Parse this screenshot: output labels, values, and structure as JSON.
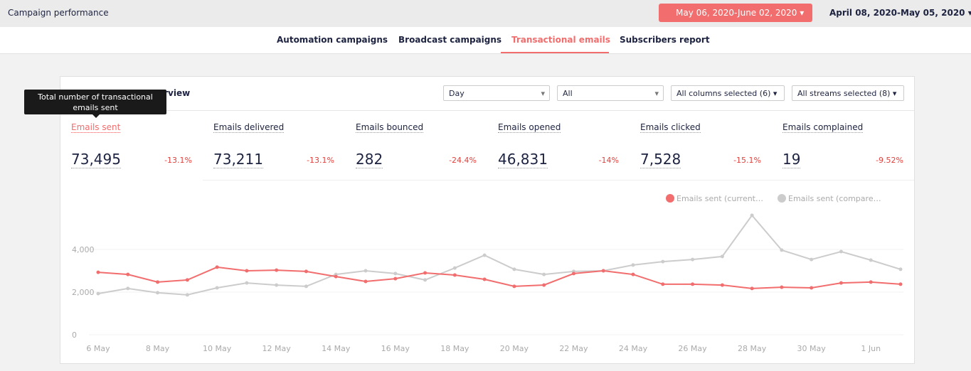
{
  "header": {
    "title": "Campaign performance",
    "current_range": "May 06, 2020-June 02, 2020",
    "compare_range": "April 08, 2020-May 05, 2020"
  },
  "tabs": [
    "Automation campaigns",
    "Broadcast campaigns",
    "Transactional emails",
    "Subscribers report"
  ],
  "active_tab": 2,
  "panel": {
    "title": "erview",
    "tooltip": [
      "Total number of transactional",
      "emails sent"
    ],
    "filters": [
      "Day",
      "All",
      "All columns selected (6)",
      "All streams selected (8)"
    ],
    "metrics": [
      {
        "label": "Emails sent",
        "value": "73,495",
        "change": "-13.1%"
      },
      {
        "label": "Emails delivered",
        "value": "73,211",
        "change": "-13.1%"
      },
      {
        "label": "Emails bounced",
        "value": "282",
        "change": "-24.4%"
      },
      {
        "label": "Emails opened",
        "value": "46,831",
        "change": "-14%"
      },
      {
        "label": "Emails clicked",
        "value": "7,528",
        "change": "-15.1%"
      },
      {
        "label": "Emails complained",
        "value": "19",
        "change": "-9.52%"
      }
    ]
  },
  "chart_data": {
    "type": "line",
    "categories": [
      "6 May",
      null,
      "8 May",
      null,
      "10 May",
      null,
      "12 May",
      null,
      "14 May",
      null,
      "16 May",
      null,
      "18 May",
      null,
      "20 May",
      null,
      "22 May",
      null,
      "24 May",
      null,
      "26 May",
      null,
      "28 May",
      null,
      "30 May",
      null,
      "1 Jun",
      null
    ],
    "series": [
      {
        "name": "Emails sent (current…",
        "color": "#f26d6d",
        "values": [
          2930,
          2830,
          2470,
          2570,
          3170,
          3000,
          3030,
          2970,
          2730,
          2500,
          2630,
          2900,
          2800,
          2600,
          2270,
          2330,
          2870,
          3000,
          2830,
          2370,
          2370,
          2330,
          2170,
          2230,
          2200,
          2430,
          2470,
          2370
        ]
      },
      {
        "name": "Emails sent (compare…",
        "color": "#cccccc",
        "values": [
          1930,
          2170,
          1970,
          1870,
          2200,
          2430,
          2330,
          2270,
          2830,
          3000,
          2870,
          2570,
          3130,
          3730,
          3070,
          2830,
          2970,
          3000,
          3270,
          3430,
          3530,
          3670,
          5600,
          3970,
          3530,
          3900,
          3500,
          3070
        ]
      }
    ],
    "ylim": [
      0,
      6000
    ],
    "yticks": [
      {
        "value": 0,
        "label": "0"
      },
      {
        "value": 2000,
        "label": "2,000"
      },
      {
        "value": 4000,
        "label": "4,000"
      }
    ],
    "grid": true
  }
}
